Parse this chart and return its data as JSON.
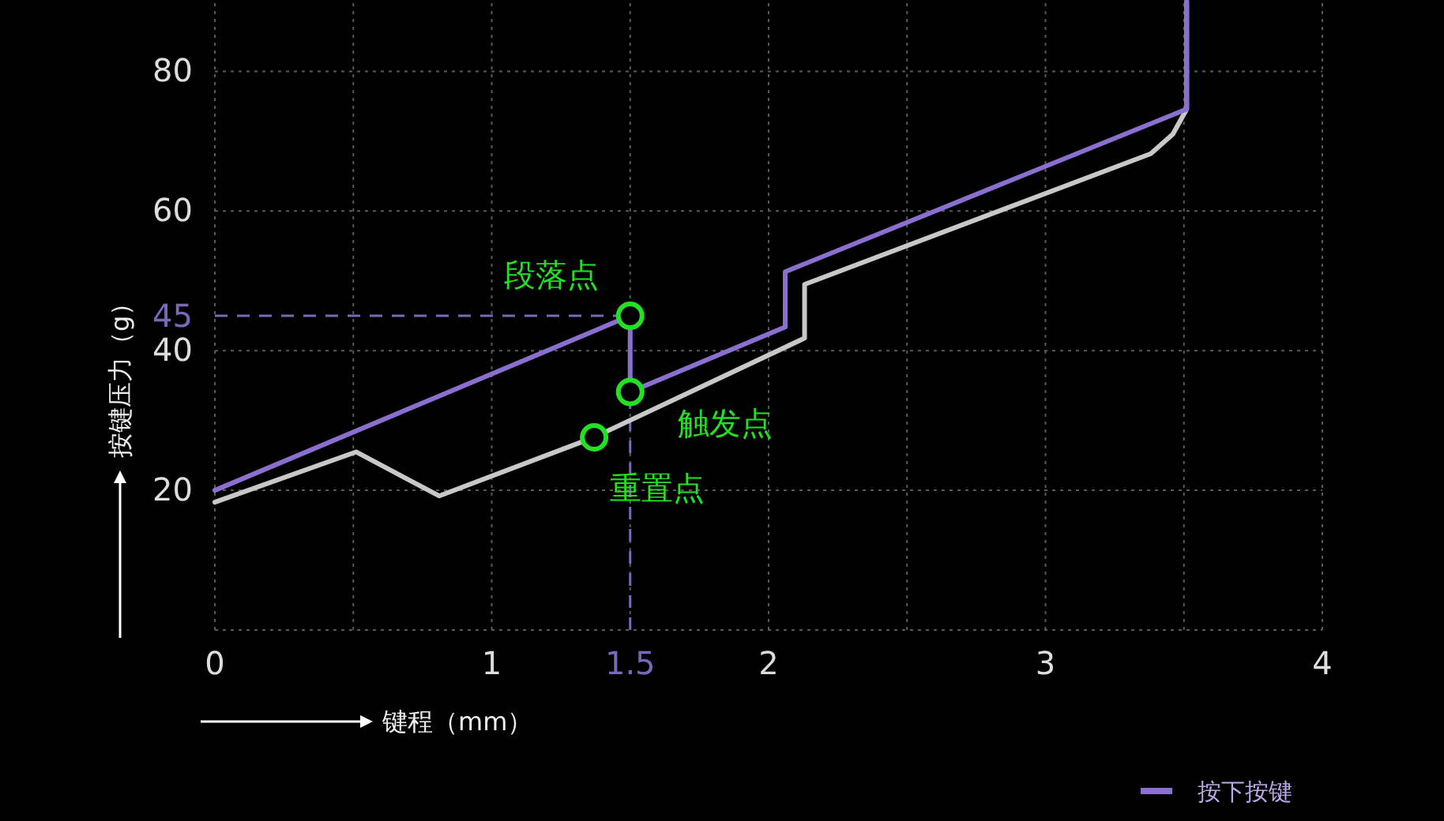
{
  "chart_data": {
    "type": "line",
    "xlabel": "键程（mm）",
    "ylabel": "按键压力（g）",
    "xlim": [
      0,
      4
    ],
    "ylim": [
      0,
      90
    ],
    "xticks": [
      0,
      {
        "value": 0.5,
        "label": null
      },
      1,
      {
        "value": 1.5,
        "label": null
      },
      2,
      {
        "value": 2.5,
        "label": null
      },
      3,
      {
        "value": 3.5,
        "label": null
      },
      4
    ],
    "yticks": [
      {
        "value": 0,
        "label": null
      },
      20,
      40,
      60,
      80
    ],
    "grid": true,
    "legend": "bottom right",
    "line_style": "solid",
    "series": [
      {
        "name": "按下按键",
        "color": "#8b6fd0",
        "x": [
          0,
          1.5,
          1.5,
          2.06,
          2.06,
          3.51,
          3.51
        ],
        "values": [
          20,
          45,
          34.1,
          43.4,
          51.3,
          74.6,
          90
        ]
      },
      {
        "color": "#c8c8c8",
        "x": [
          0,
          0.51,
          0.81,
          1.37,
          2.13,
          2.13,
          3.38,
          3.46,
          3.51,
          3.51
        ],
        "values": [
          18.3,
          25.5,
          19.2,
          27.6,
          41.8,
          49.5,
          68.2,
          71,
          74.6,
          90
        ]
      },
      {
        "type": "scatter",
        "color": "#22e022",
        "x": [
          1.5,
          1.5,
          1.37
        ],
        "values": [
          45,
          34.1,
          27.6
        ]
      }
    ],
    "ref_lines": [
      {
        "axis": "y",
        "value": 45,
        "label": "45",
        "color": "#7a68b8",
        "line_style": "dashed"
      },
      {
        "axis": "x",
        "value": 1.5,
        "label": "1.5",
        "color": "#7a68b8",
        "line_style": "dashed"
      }
    ],
    "annotations": [
      "段落点",
      "触发点",
      "重置点"
    ]
  }
}
